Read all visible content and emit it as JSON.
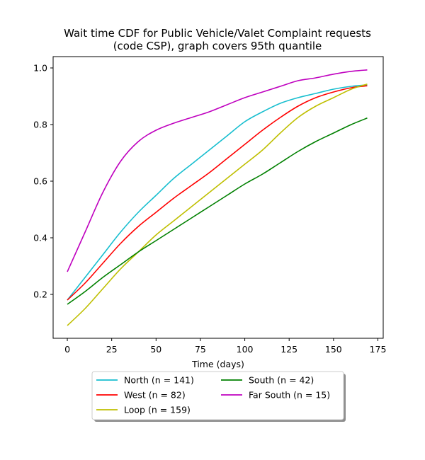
{
  "chart_data": {
    "type": "line",
    "title_lines": [
      "Wait time CDF for Public Vehicle/Valet Complaint  requests",
      "(code CSP), graph covers 95th quantile"
    ],
    "xlabel": "Time (days)",
    "ylabel": "",
    "xlim": [
      -8,
      178
    ],
    "ylim": [
      0.045,
      1.04
    ],
    "xticks": [
      0,
      25,
      50,
      75,
      100,
      125,
      150,
      175
    ],
    "yticks": [
      0.2,
      0.4,
      0.6,
      0.8,
      1.0
    ],
    "ytick_labels": [
      "0.2",
      "0.4",
      "0.6",
      "0.8",
      "1.0"
    ],
    "grid": false,
    "legend_position": "below plot, center",
    "legend_columns": 2,
    "x": [
      0,
      10,
      20,
      30,
      40,
      50,
      60,
      70,
      80,
      90,
      100,
      110,
      120,
      130,
      140,
      150,
      160,
      169
    ],
    "series": [
      {
        "name": "North (n = 141)",
        "color": "#17becf",
        "values": [
          0.18,
          0.26,
          0.34,
          0.42,
          0.49,
          0.55,
          0.61,
          0.66,
          0.71,
          0.76,
          0.81,
          0.845,
          0.875,
          0.895,
          0.91,
          0.925,
          0.935,
          0.94
        ]
      },
      {
        "name": "West (n = 82)",
        "color": "#ff0000",
        "values": [
          0.18,
          0.24,
          0.31,
          0.38,
          0.44,
          0.49,
          0.54,
          0.585,
          0.63,
          0.68,
          0.73,
          0.78,
          0.825,
          0.865,
          0.895,
          0.915,
          0.93,
          0.937
        ]
      },
      {
        "name": "Loop (n = 159)",
        "color": "#bfbf00",
        "values": [
          0.09,
          0.15,
          0.22,
          0.29,
          0.35,
          0.41,
          0.46,
          0.51,
          0.56,
          0.61,
          0.66,
          0.71,
          0.77,
          0.825,
          0.865,
          0.895,
          0.925,
          0.943
        ]
      },
      {
        "name": "South (n = 42)",
        "color": "#008000",
        "values": [
          0.165,
          0.21,
          0.26,
          0.305,
          0.35,
          0.39,
          0.43,
          0.47,
          0.51,
          0.55,
          0.59,
          0.625,
          0.665,
          0.705,
          0.74,
          0.77,
          0.8,
          0.823
        ]
      },
      {
        "name": "Far South (n = 15)",
        "color": "#bf00bf",
        "values": [
          0.28,
          0.42,
          0.56,
          0.67,
          0.74,
          0.78,
          0.805,
          0.825,
          0.845,
          0.87,
          0.895,
          0.915,
          0.935,
          0.955,
          0.965,
          0.978,
          0.988,
          0.993
        ]
      }
    ]
  }
}
